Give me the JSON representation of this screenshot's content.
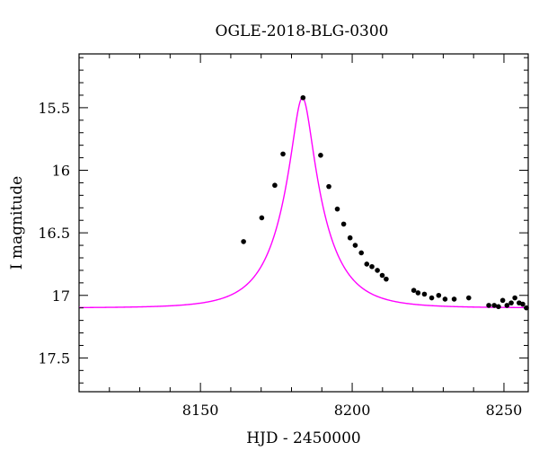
{
  "chart_data": {
    "type": "scatter",
    "title": "OGLE-2018-BLG-0300",
    "xlabel": "HJD - 2450000",
    "ylabel": "I magnitude",
    "xlim": [
      8110,
      8258
    ],
    "ylim": [
      17.77,
      15.07
    ],
    "y_inverted": true,
    "grid": false,
    "x_ticks": [
      {
        "value": 8150,
        "label": "8150"
      },
      {
        "value": 8200,
        "label": "8200"
      },
      {
        "value": 8250,
        "label": "8250"
      }
    ],
    "y_ticks": [
      {
        "value": 15.5,
        "label": "15.5"
      },
      {
        "value": 16,
        "label": "16"
      },
      {
        "value": 16.5,
        "label": "16.5"
      },
      {
        "value": 17,
        "label": "17"
      },
      {
        "value": 17.5,
        "label": "17.5"
      }
    ],
    "model": {
      "color": "#ff00ff",
      "t0": 8183.6,
      "tE": 14,
      "u0": 0.223,
      "baseline": 17.1,
      "peak": 15.42
    },
    "points": {
      "color": "#000000",
      "x": [
        8164.2,
        8170.2,
        8174.5,
        8177.2,
        8183.8,
        8189.6,
        8192.3,
        8195.1,
        8197.2,
        8199.3,
        8201.0,
        8203.0,
        8204.8,
        8206.5,
        8208.3,
        8209.9,
        8211.2,
        8220.3,
        8221.7,
        8223.8,
        8226.2,
        8228.5,
        8230.6,
        8233.6,
        8238.4,
        8245.0,
        8246.8,
        8248.2,
        8249.6,
        8251.0,
        8252.4,
        8253.6,
        8255.0,
        8256.2,
        8257.4
      ],
      "y": [
        16.57,
        16.38,
        16.12,
        15.87,
        15.42,
        15.88,
        16.13,
        16.31,
        16.43,
        16.54,
        16.6,
        16.66,
        16.75,
        16.77,
        16.8,
        16.84,
        16.87,
        16.96,
        16.98,
        16.99,
        17.02,
        17.0,
        17.03,
        17.03,
        17.02,
        17.08,
        17.08,
        17.09,
        17.04,
        17.08,
        17.06,
        17.02,
        17.06,
        17.07,
        17.1
      ]
    }
  }
}
